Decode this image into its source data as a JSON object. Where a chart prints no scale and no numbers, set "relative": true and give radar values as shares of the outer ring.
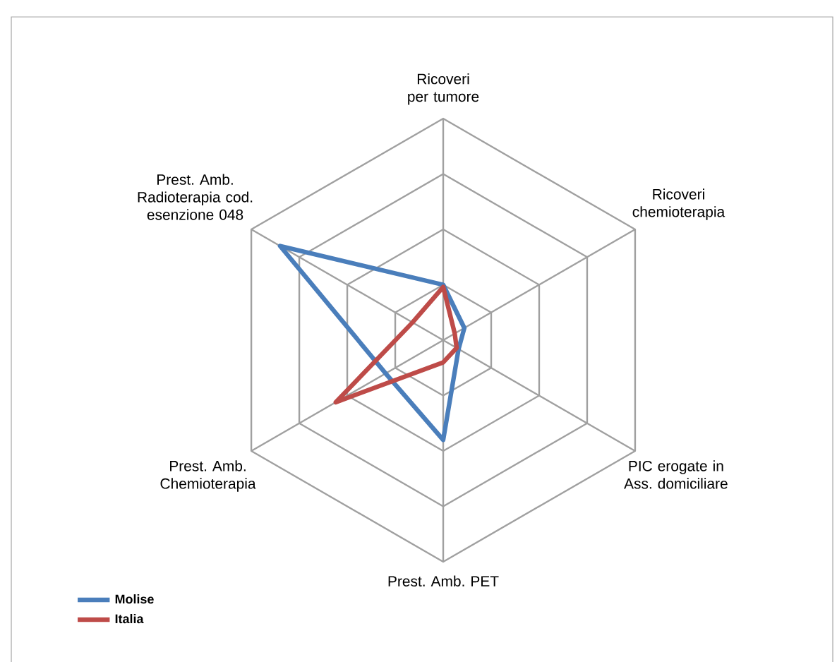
{
  "chart_data": {
    "type": "radar",
    "relative": true,
    "grid": true,
    "legend": "bottom left",
    "categories": [
      "Ricoveri per tumore",
      "Ricoveri chemioterapia",
      "PIC erogate in Ass. domiciliare",
      "Prest. Amb. PET",
      "Prest. Amb. Chemioterapia",
      "Prest. Amb. Radioterapia cod. esenzione 048"
    ],
    "series": [
      {
        "name": "Molise",
        "color": "#4a7ebb",
        "values": [
          0.25,
          0.11,
          0.08,
          0.45,
          0.3,
          0.85
        ]
      },
      {
        "name": "Italia",
        "color": "#be4b48",
        "values": [
          0.24,
          0.06,
          0.07,
          0.1,
          0.56,
          0.16
        ]
      }
    ]
  }
}
